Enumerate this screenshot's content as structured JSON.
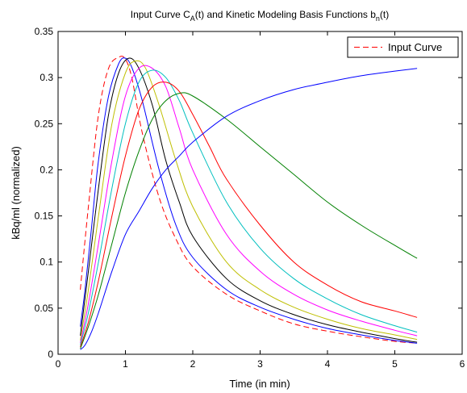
{
  "chart_data": {
    "type": "line",
    "title": {
      "prefix": "Input Curve C",
      "sub_a": "A",
      "middle": "(t) and Kinetic Modeling Basis Functions b",
      "sub_n": "n",
      "suffix": "(t)"
    },
    "xlabel": "Time (in min)",
    "ylabel": "kBq/ml (normalized)",
    "xlim": [
      0,
      6
    ],
    "ylim": [
      0,
      0.35
    ],
    "xticks": [
      "0",
      "1",
      "2",
      "3",
      "4",
      "5",
      "6"
    ],
    "yticks": [
      "0",
      "0.05",
      "0.1",
      "0.15",
      "0.2",
      "0.25",
      "0.3",
      "0.35"
    ],
    "grid": false,
    "legend": {
      "position": "top-right",
      "entries": [
        "Input Curve"
      ]
    },
    "series": [
      {
        "name": "Input Curve",
        "color": "#ff0000",
        "dashed": true,
        "x": [
          0.33,
          0.45,
          0.6,
          0.75,
          0.9,
          1.0,
          1.1,
          1.25,
          1.5,
          1.75,
          2.0,
          2.5,
          3.0,
          3.5,
          4.0,
          4.5,
          5.0,
          5.33
        ],
        "y": [
          0.07,
          0.16,
          0.26,
          0.31,
          0.322,
          0.32,
          0.298,
          0.24,
          0.17,
          0.125,
          0.095,
          0.065,
          0.047,
          0.033,
          0.025,
          0.019,
          0.014,
          0.012
        ]
      },
      {
        "color": "#0000ff",
        "x": [
          0.33,
          0.4,
          0.5,
          0.6,
          0.75,
          0.9,
          1.0,
          1.1,
          1.25,
          1.5,
          1.75,
          2.0,
          2.5,
          3.0,
          3.5,
          4.0,
          4.5,
          5.0,
          5.33
        ],
        "y": [
          0.03,
          0.07,
          0.14,
          0.21,
          0.28,
          0.315,
          0.321,
          0.31,
          0.275,
          0.2,
          0.14,
          0.105,
          0.07,
          0.051,
          0.038,
          0.028,
          0.021,
          0.015,
          0.012
        ]
      },
      {
        "color": "#000000",
        "x": [
          0.33,
          0.45,
          0.6,
          0.75,
          0.9,
          1.05,
          1.2,
          1.4,
          1.6,
          1.8,
          2.0,
          2.5,
          3.0,
          3.5,
          4.0,
          4.5,
          5.0,
          5.33
        ],
        "y": [
          0.02,
          0.09,
          0.18,
          0.26,
          0.305,
          0.321,
          0.31,
          0.27,
          0.21,
          0.165,
          0.128,
          0.082,
          0.058,
          0.043,
          0.032,
          0.024,
          0.017,
          0.013
        ]
      },
      {
        "color": "#bfbf00",
        "x": [
          0.33,
          0.45,
          0.6,
          0.8,
          1.0,
          1.15,
          1.3,
          1.5,
          1.75,
          2.0,
          2.5,
          3.0,
          3.5,
          4.0,
          4.5,
          5.0,
          5.33
        ],
        "y": [
          0.015,
          0.07,
          0.15,
          0.25,
          0.305,
          0.318,
          0.31,
          0.27,
          0.21,
          0.16,
          0.1,
          0.07,
          0.051,
          0.038,
          0.028,
          0.021,
          0.016
        ]
      },
      {
        "color": "#ff00ff",
        "x": [
          0.33,
          0.45,
          0.6,
          0.8,
          1.0,
          1.2,
          1.4,
          1.6,
          1.8,
          2.0,
          2.5,
          3.0,
          3.5,
          4.0,
          4.5,
          5.0,
          5.33
        ],
        "y": [
          0.012,
          0.055,
          0.12,
          0.21,
          0.28,
          0.31,
          0.31,
          0.29,
          0.245,
          0.2,
          0.13,
          0.09,
          0.065,
          0.048,
          0.036,
          0.026,
          0.02
        ]
      },
      {
        "color": "#00bfbf",
        "x": [
          0.33,
          0.45,
          0.6,
          0.8,
          1.0,
          1.2,
          1.4,
          1.6,
          1.8,
          2.0,
          2.5,
          3.0,
          3.5,
          4.0,
          4.5,
          5.0,
          5.33
        ],
        "y": [
          0.01,
          0.045,
          0.1,
          0.18,
          0.25,
          0.295,
          0.308,
          0.3,
          0.275,
          0.24,
          0.165,
          0.115,
          0.082,
          0.06,
          0.043,
          0.031,
          0.024
        ]
      },
      {
        "color": "#ff0000",
        "x": [
          0.33,
          0.45,
          0.6,
          0.8,
          1.0,
          1.2,
          1.4,
          1.6,
          1.8,
          2.0,
          2.25,
          2.5,
          3.0,
          3.5,
          4.0,
          4.5,
          5.0,
          5.33
        ],
        "y": [
          0.008,
          0.035,
          0.08,
          0.15,
          0.215,
          0.265,
          0.29,
          0.295,
          0.285,
          0.26,
          0.225,
          0.19,
          0.14,
          0.1,
          0.075,
          0.057,
          0.047,
          0.04
        ]
      },
      {
        "color": "#008000",
        "x": [
          0.33,
          0.45,
          0.6,
          0.8,
          1.0,
          1.2,
          1.4,
          1.6,
          1.8,
          2.0,
          2.5,
          3.0,
          3.5,
          4.0,
          4.5,
          5.0,
          5.33
        ],
        "y": [
          0.006,
          0.03,
          0.065,
          0.12,
          0.175,
          0.22,
          0.255,
          0.275,
          0.283,
          0.28,
          0.255,
          0.225,
          0.195,
          0.165,
          0.14,
          0.118,
          0.104
        ]
      },
      {
        "color": "#0000ff",
        "x": [
          0.33,
          0.4,
          0.5,
          0.6,
          0.8,
          1.0,
          1.2,
          1.4,
          1.6,
          1.8,
          2.0,
          2.5,
          3.0,
          3.5,
          4.0,
          4.5,
          5.0,
          5.33
        ],
        "y": [
          0.005,
          0.01,
          0.025,
          0.045,
          0.09,
          0.13,
          0.155,
          0.18,
          0.2,
          0.215,
          0.23,
          0.258,
          0.275,
          0.287,
          0.295,
          0.302,
          0.307,
          0.31
        ]
      }
    ]
  }
}
